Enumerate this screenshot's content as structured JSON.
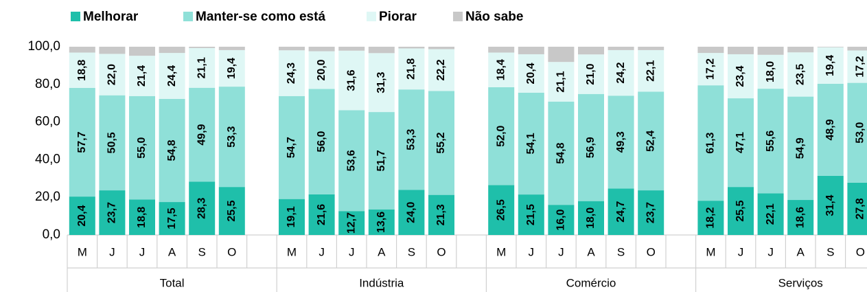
{
  "chart_data": {
    "type": "stacked_bar",
    "groups": [
      "Total",
      "Indústria",
      "Comércio",
      "Serviços"
    ],
    "categories": [
      "M",
      "J",
      "J",
      "A",
      "S",
      "O",
      "M",
      "J",
      "J",
      "A",
      "S",
      "O",
      "M",
      "J",
      "J",
      "A",
      "S",
      "O",
      "M",
      "J",
      "J",
      "A",
      "S",
      "O"
    ],
    "series": [
      {
        "name": "Melhorar",
        "color": "#1fbfaa",
        "values": [
          20.4,
          23.7,
          18.8,
          17.5,
          28.3,
          25.5,
          19.1,
          21.6,
          12.7,
          13.6,
          24.0,
          21.3,
          26.5,
          21.5,
          16.0,
          18.0,
          24.7,
          23.7,
          18.2,
          25.5,
          22.1,
          18.6,
          31.4,
          27.8
        ],
        "value_labels": [
          "20,4",
          "23,7",
          "18,8",
          "17,5",
          "28,3",
          "25,5",
          "19,1",
          "21,6",
          "12,7",
          "13,6",
          "24,0",
          "21,3",
          "26,5",
          "21,5",
          "16,0",
          "18,0",
          "24,7",
          "23,7",
          "18,2",
          "25,5",
          "22,1",
          "18,6",
          "31,4",
          "27,8"
        ]
      },
      {
        "name": "Manter-se como está",
        "color": "#8fe0d8",
        "values": [
          57.7,
          50.5,
          55.0,
          54.8,
          49.9,
          53.3,
          54.7,
          56.0,
          53.6,
          51.7,
          53.3,
          55.2,
          52.0,
          54.1,
          54.8,
          56.9,
          49.3,
          52.4,
          61.3,
          47.1,
          55.6,
          54.9,
          48.9,
          53.0
        ],
        "value_labels": [
          "57,7",
          "50,5",
          "55,0",
          "54,8",
          "49,9",
          "53,3",
          "54,7",
          "56,0",
          "53,6",
          "51,7",
          "53,3",
          "55,2",
          "52,0",
          "54,1",
          "54,8",
          "56,9",
          "49,3",
          "52,4",
          "61,3",
          "47,1",
          "55,6",
          "54,9",
          "48,9",
          "53,0"
        ]
      },
      {
        "name": "Piorar",
        "color": "#dff7f5",
        "values": [
          18.8,
          22.0,
          21.4,
          24.4,
          21.1,
          19.4,
          24.3,
          20.0,
          31.6,
          31.3,
          21.8,
          22.2,
          18.4,
          20.4,
          21.1,
          21.0,
          24.2,
          22.1,
          17.2,
          23.4,
          18.0,
          23.5,
          19.4,
          17.2
        ],
        "value_labels": [
          "18,8",
          "22,0",
          "21,4",
          "24,4",
          "21,1",
          "19,4",
          "24,3",
          "20,0",
          "31,6",
          "31,3",
          "21,8",
          "22,2",
          "18,4",
          "20,4",
          "21,1",
          "21,0",
          "24,2",
          "22,1",
          "17,2",
          "23,4",
          "18,0",
          "23,5",
          "19,4",
          "17,2"
        ]
      },
      {
        "name": "Não sabe",
        "color": "#c8c8c8",
        "values": [
          3.1,
          3.8,
          4.8,
          3.3,
          0.7,
          1.8,
          1.9,
          2.4,
          2.1,
          3.4,
          0.9,
          1.3,
          3.1,
          4.0,
          8.1,
          4.1,
          1.8,
          1.8,
          3.3,
          4.0,
          4.3,
          3.0,
          0.3,
          2.0
        ]
      }
    ],
    "ylim": [
      0,
      100
    ],
    "yticks": [
      {
        "value": 0,
        "label": "0,0"
      },
      {
        "value": 20,
        "label": "20,0"
      },
      {
        "value": 40,
        "label": "40,0"
      },
      {
        "value": 60,
        "label": "60,0"
      },
      {
        "value": 80,
        "label": "80,0"
      },
      {
        "value": 100,
        "label": "100,0"
      }
    ],
    "legend": "top"
  }
}
